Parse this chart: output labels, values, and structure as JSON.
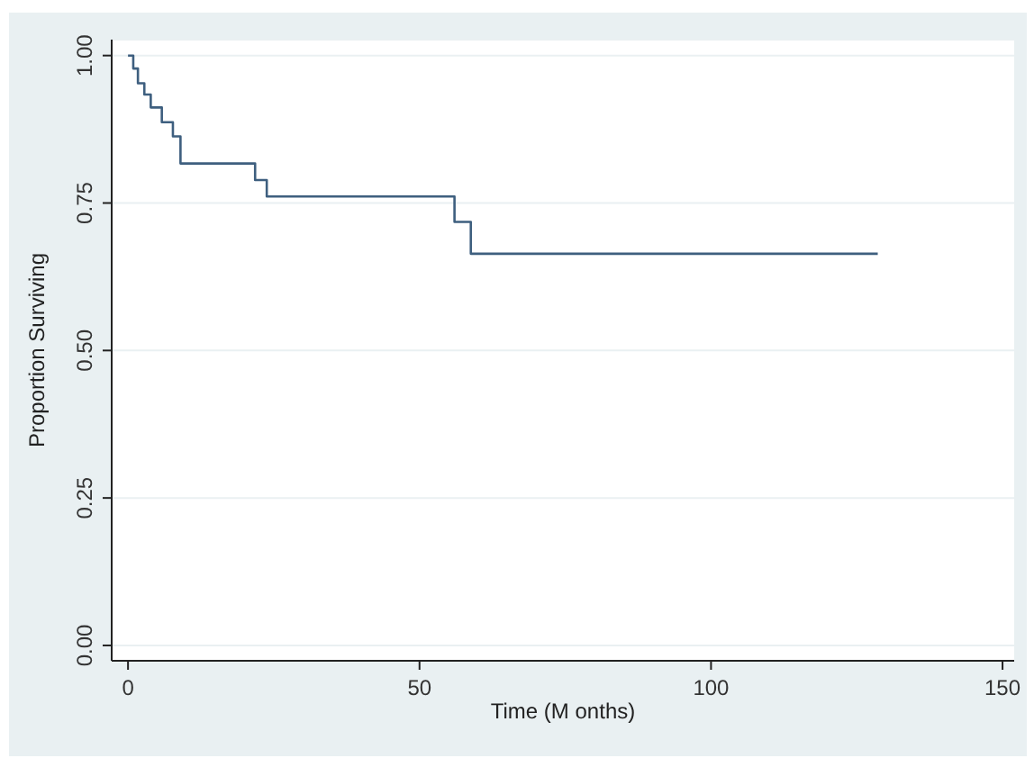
{
  "chart_data": {
    "type": "step",
    "xlabel": "Time (M onths)",
    "ylabel": "Proportion Surviving",
    "x": [
      0,
      0.9,
      1.7,
      2.8,
      3.9,
      5.8,
      7.7,
      9,
      21.8,
      23.8,
      56,
      58.8,
      128.6
    ],
    "values": [
      1,
      0.978,
      0.953,
      0.934,
      0.912,
      0.887,
      0.863,
      0.817,
      0.789,
      0.761,
      0.718,
      0.664,
      0.664
    ],
    "color": "#3e5f7f",
    "xlim": [
      -2.8,
      152
    ],
    "xticks": [
      0,
      50,
      100,
      150
    ],
    "ylim": [
      -0.026,
      1.027
    ],
    "yticks": [
      {
        "value": 0,
        "label": "0.00"
      },
      {
        "value": 0.25,
        "label": "0.25"
      },
      {
        "value": 0.5,
        "label": "0.50"
      },
      {
        "value": 0.75,
        "label": "0.75"
      },
      {
        "value": 1,
        "label": "1.00"
      }
    ],
    "grid": "y"
  }
}
